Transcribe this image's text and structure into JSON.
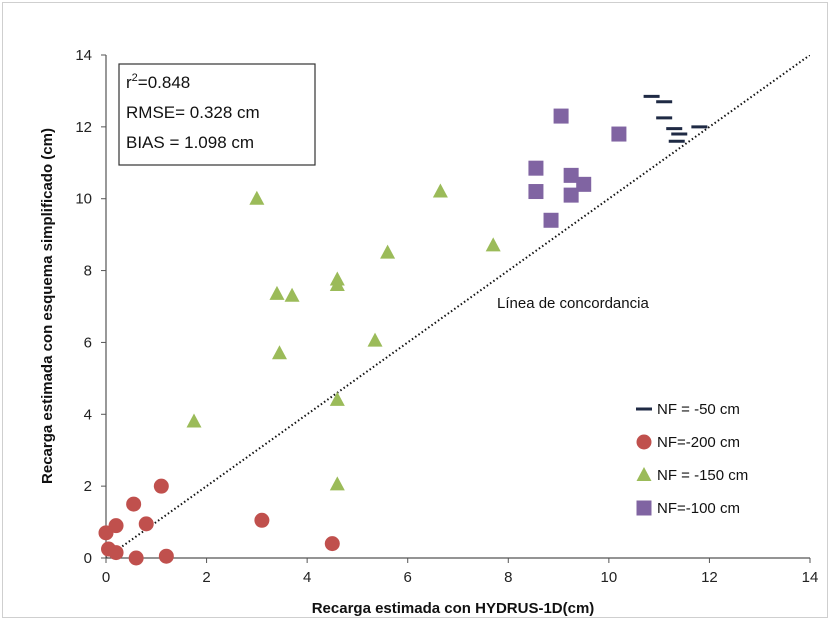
{
  "chart_data": {
    "type": "scatter",
    "xlabel": "Recarga estimada con HYDRUS-1D(cm)",
    "ylabel": "Recarga estimada con esquema simplificado (cm)",
    "xlim": [
      0,
      14
    ],
    "ylim": [
      0,
      14
    ],
    "xticks": [
      "0",
      "2",
      "4",
      "6",
      "8",
      "10",
      "12",
      "14"
    ],
    "yticks": [
      "0",
      "2",
      "4",
      "6",
      "8",
      "10",
      "12",
      "14"
    ],
    "grid": false,
    "legend_position": "bottom-right",
    "stats": {
      "r2_prefix": "r",
      "r2_sup": "2",
      "r2_value": "=0.848",
      "rmse": "RMSE= 0.328 cm",
      "bias": "BIAS =  1.098 cm"
    },
    "reference_line": {
      "label": "Línea de concordancia",
      "from": [
        0,
        0
      ],
      "to": [
        14,
        14
      ],
      "style": "dotted"
    },
    "series": [
      {
        "name": "NF = -50 cm",
        "marker": "dash",
        "color": "#1f2a44",
        "points": [
          [
            10.85,
            12.85
          ],
          [
            11.1,
            12.7
          ],
          [
            11.1,
            12.25
          ],
          [
            11.3,
            11.95
          ],
          [
            11.4,
            11.8
          ],
          [
            11.35,
            11.6
          ],
          [
            11.8,
            12.0
          ]
        ]
      },
      {
        "name": "NF=-200 cm",
        "marker": "circle",
        "color": "#c0504d",
        "points": [
          [
            0.0,
            0.7
          ],
          [
            0.2,
            0.9
          ],
          [
            0.05,
            0.25
          ],
          [
            0.2,
            0.15
          ],
          [
            0.55,
            1.5
          ],
          [
            0.6,
            0.0
          ],
          [
            0.8,
            0.95
          ],
          [
            1.1,
            2.0
          ],
          [
            1.2,
            0.05
          ],
          [
            3.1,
            1.05
          ],
          [
            4.5,
            0.4
          ]
        ]
      },
      {
        "name": "NF = -150 cm",
        "marker": "triangle",
        "color": "#9bbb59",
        "points": [
          [
            1.75,
            3.8
          ],
          [
            3.0,
            10.0
          ],
          [
            3.4,
            7.35
          ],
          [
            3.45,
            5.7
          ],
          [
            3.7,
            7.3
          ],
          [
            4.6,
            7.75
          ],
          [
            4.6,
            7.6
          ],
          [
            4.6,
            4.4
          ],
          [
            4.6,
            2.05
          ],
          [
            5.35,
            6.05
          ],
          [
            5.6,
            8.5
          ],
          [
            6.65,
            10.2
          ],
          [
            7.7,
            8.7
          ]
        ]
      },
      {
        "name": "NF=-100 cm",
        "marker": "square",
        "color": "#8064a2",
        "points": [
          [
            8.55,
            10.85
          ],
          [
            8.55,
            10.2
          ],
          [
            8.85,
            9.4
          ],
          [
            9.05,
            12.3
          ],
          [
            9.25,
            10.65
          ],
          [
            9.25,
            10.1
          ],
          [
            9.5,
            10.4
          ],
          [
            10.2,
            11.8
          ]
        ]
      }
    ]
  }
}
